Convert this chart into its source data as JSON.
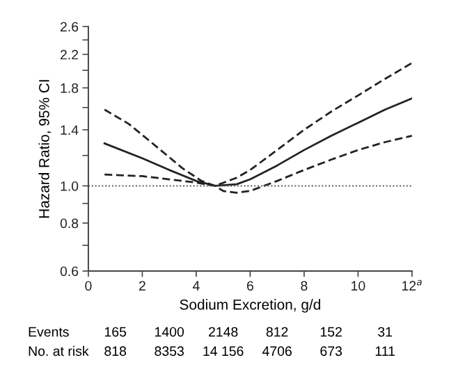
{
  "chart_data": {
    "type": "line",
    "xlabel": "Sodium Excretion, g/d",
    "ylabel": "Hazard Ratio, 95% CI",
    "log": "y",
    "xlim": [
      0,
      12
    ],
    "xticks": [
      0,
      2,
      4,
      6,
      8,
      10,
      {
        "value": 12,
        "label": "12$^{a}$"
      }
    ],
    "ylim": [
      0.6,
      2.6
    ],
    "yticks": [
      0.6,
      {
        "value": 0.7,
        "label": null
      },
      0.8,
      {
        "value": 0.9,
        "label": null
      },
      {
        "value": 1,
        "label": "1.0"
      },
      {
        "value": 1.2,
        "label": null
      },
      1.4,
      {
        "value": 1.6,
        "label": null
      },
      1.8,
      {
        "value": 2.0,
        "label": null
      },
      2.2,
      {
        "value": 2.4,
        "label": null
      },
      2.6
    ],
    "grid": false,
    "legend": false,
    "marker": "none",
    "series": [
      {
        "color": "#222222",
        "line_style": "solid",
        "x": [
          0.6,
          2,
          3,
          4,
          4.7,
          5.5,
          6,
          7,
          8,
          9,
          10,
          11,
          12
        ],
        "values": [
          1.29,
          1.18,
          1.1,
          1.03,
          1.0,
          1.01,
          1.04,
          1.13,
          1.24,
          1.35,
          1.46,
          1.58,
          1.69
        ]
      },
      {
        "color": "#222222",
        "line_style": "dashed",
        "x": [
          0.6,
          1.5,
          2.5,
          3.5,
          4.2,
          4.7,
          5.5,
          6,
          7,
          8,
          9,
          10,
          11,
          12
        ],
        "values": [
          1.58,
          1.45,
          1.27,
          1.11,
          1.03,
          1.0,
          1.05,
          1.1,
          1.24,
          1.4,
          1.56,
          1.72,
          1.9,
          2.09
        ]
      },
      {
        "color": "#222222",
        "line_style": "dashed",
        "x": [
          0.6,
          2,
          3,
          4,
          4.7,
          5,
          5.5,
          6,
          7,
          8,
          9,
          10,
          11,
          12
        ],
        "values": [
          1.07,
          1.06,
          1.04,
          1.02,
          1.0,
          0.97,
          0.96,
          0.97,
          1.03,
          1.1,
          1.17,
          1.24,
          1.3,
          1.35
        ]
      }
    ],
    "ref_lines": [
      {
        "axis": "y",
        "value": 1.0,
        "label": null,
        "color": "#555555",
        "line_style": "dotted"
      }
    ],
    "annotations": [
      "Events",
      "165",
      "1400",
      "2148",
      "812",
      "152",
      "31",
      "No. at risk",
      "818",
      "8353",
      "14 156",
      "4706",
      "673",
      "111"
    ]
  }
}
